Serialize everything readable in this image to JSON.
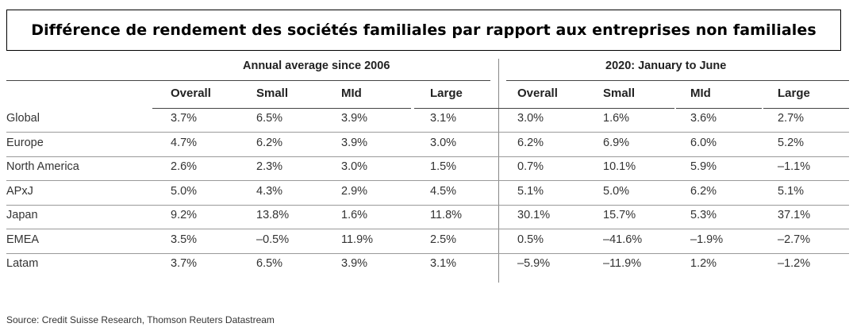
{
  "title": "Différence de rendement des sociétés familiales par rapport aux entreprises non familiales",
  "chart_data": {
    "type": "table",
    "groups": [
      "Annual average since 2006",
      "2020: January to June"
    ],
    "columns": [
      "Overall",
      "Small",
      "MId",
      "Large",
      "Overall",
      "Small",
      "MId",
      "Large"
    ],
    "rows": [
      {
        "label": "Global",
        "values": [
          "3.7%",
          "6.5%",
          "3.9%",
          "3.1%",
          "3.0%",
          "1.6%",
          "3.6%",
          "2.7%"
        ]
      },
      {
        "label": "Europe",
        "values": [
          "4.7%",
          "6.2%",
          "3.9%",
          "3.0%",
          "6.2%",
          "6.9%",
          "6.0%",
          "5.2%"
        ]
      },
      {
        "label": "North America",
        "values": [
          "2.6%",
          "2.3%",
          "3.0%",
          "1.5%",
          "0.7%",
          "10.1%",
          "5.9%",
          "–1.1%"
        ]
      },
      {
        "label": "APxJ",
        "values": [
          "5.0%",
          "4.3%",
          "2.9%",
          "4.5%",
          "5.1%",
          "5.0%",
          "6.2%",
          "5.1%"
        ]
      },
      {
        "label": "Japan",
        "values": [
          "9.2%",
          "13.8%",
          "1.6%",
          "11.8%",
          "30.1%",
          "15.7%",
          "5.3%",
          "37.1%"
        ]
      },
      {
        "label": "EMEA",
        "values": [
          "3.5%",
          "–0.5%",
          "11.9%",
          "2.5%",
          "0.5%",
          "–41.6%",
          "–1.9%",
          "–2.7%"
        ]
      },
      {
        "label": "Latam",
        "values": [
          "3.7%",
          "6.5%",
          "3.9%",
          "3.1%",
          "–5.9%",
          "–11.9%",
          "1.2%",
          "–1.2%"
        ]
      }
    ]
  },
  "source": "Source: Credit Suisse Research, Thomson Reuters Datastream"
}
